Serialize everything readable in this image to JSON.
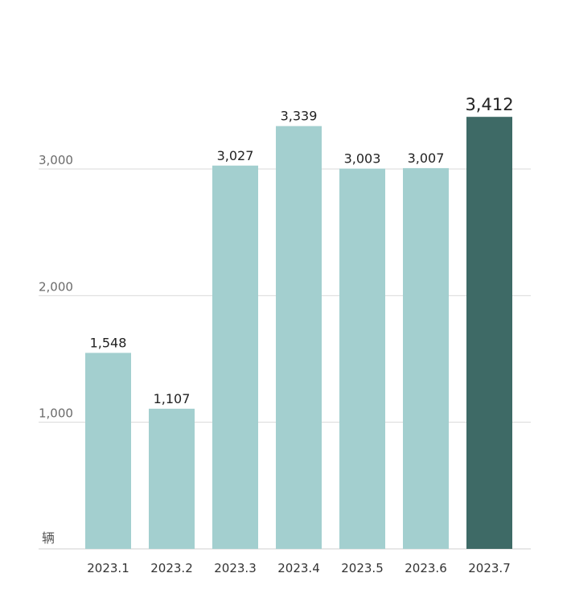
{
  "chart_data": {
    "type": "bar",
    "unit_label": "辆",
    "categories": [
      "2023.1",
      "2023.2",
      "2023.3",
      "2023.4",
      "2023.5",
      "2023.6",
      "2023.7"
    ],
    "values": [
      1548,
      1107,
      3027,
      3339,
      3003,
      3007,
      3412
    ],
    "value_labels": [
      "1,548",
      "1,107",
      "3,027",
      "3,339",
      "3,003",
      "3,007",
      "3,412"
    ],
    "y_ticks": [
      1000,
      2000,
      3000
    ],
    "y_tick_labels": [
      "1,000",
      "2,000",
      "3,000"
    ],
    "ylim": [
      0,
      3500
    ],
    "grid": true,
    "highlight_index": 6,
    "colors": {
      "bar": "#a3cfcf",
      "highlight": "#3e6a66"
    }
  }
}
